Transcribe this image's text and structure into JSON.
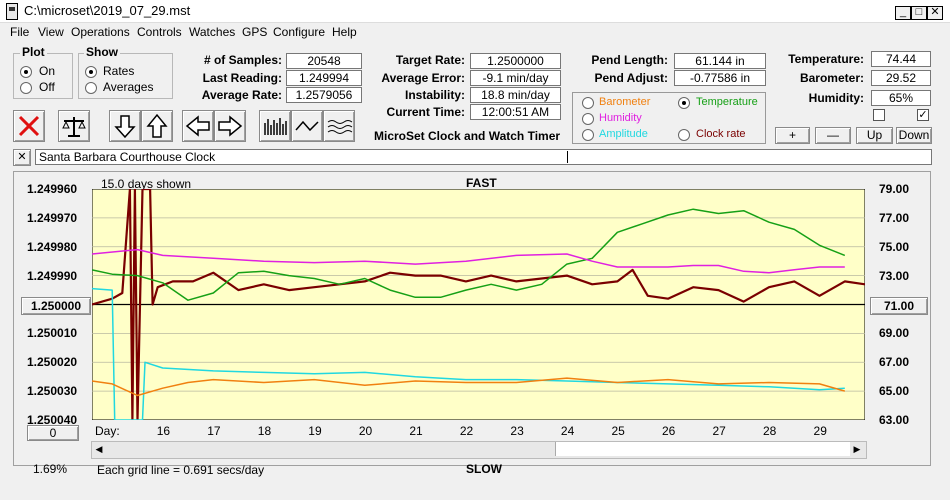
{
  "window": {
    "title": "C:\\microset\\2019_07_29.mst"
  },
  "menu": [
    "File",
    "View",
    "Operations",
    "Controls",
    "Watches",
    "GPS",
    "Configure",
    "Help"
  ],
  "plot_group": {
    "title": "Plot",
    "on": "On",
    "off": "Off",
    "selected": "On"
  },
  "show_group": {
    "title": "Show",
    "rates": "Rates",
    "averages": "Averages",
    "selected": "Rates"
  },
  "stats": {
    "samples_label": "# of Samples:",
    "samples": "20548",
    "last_label": "Last Reading:",
    "last": "1.249994",
    "avgrate_label": "Average Rate:",
    "avgrate": "1.2579056",
    "target_label": "Target Rate:",
    "target": "1.2500000",
    "avgerr_label": "Average Error:",
    "avgerr": "-9.1 min/day",
    "instab_label": "Instability:",
    "instab": "18.8 min/day",
    "time_label": "Current Time:",
    "time": "12:00:51 AM",
    "pendlen_label": "Pend Length:",
    "pendlen": "61.144 in",
    "pendadj_label": "Pend Adjust:",
    "pendadj": "-0.77586 in",
    "temp_label": "Temperature:",
    "temp": "74.44",
    "baro_label": "Barometer:",
    "baro": "29.52",
    "hum_label": "Humidity:",
    "hum": "65%"
  },
  "app_caption": "MicroSet Clock and Watch Timer",
  "legend": {
    "barometer": "Barometer",
    "temperature": "Temperature",
    "humidity": "Humidity",
    "amplitude": "Amplitude",
    "clockrate": "Clock rate",
    "selected": "Temperature"
  },
  "sensor_buttons": {
    "plus": "+",
    "minus": "—",
    "up": "Up",
    "down": "Down"
  },
  "clock_name": "Santa Barbara Courthouse Clock",
  "chart": {
    "days_shown": "15.0 days shown",
    "fast": "FAST",
    "slow": "SLOW",
    "day_label": "Day:",
    "grid_note": "Each grid line = 0.691 secs/day",
    "corner_pct": "1.69%",
    "center_button": "1.250000",
    "zero_button": "0",
    "right_button": "71.00"
  },
  "colors": {
    "rate": "#7a0000",
    "temperature": "#16a016",
    "humidity": "#e020e0",
    "amplitude": "#20d8e0",
    "barometer": "#f08010",
    "plotbg": "#ffffc8"
  },
  "chart_data": {
    "type": "line",
    "left_axis": {
      "ticks": [
        "1.249960",
        "1.249970",
        "1.249980",
        "1.249990",
        "1.250000",
        "1.250010",
        "1.250020",
        "1.250030",
        "1.250040"
      ],
      "range": [
        1.24996,
        1.25004
      ],
      "inverted": true
    },
    "right_axis": {
      "ticks": [
        "79.00",
        "77.00",
        "75.00",
        "73.00",
        "71.00",
        "69.00",
        "67.00",
        "65.00",
        "63.00"
      ],
      "range": [
        63,
        79
      ]
    },
    "x_ticks": [
      "16",
      "17",
      "18",
      "19",
      "20",
      "21",
      "22",
      "23",
      "24",
      "25",
      "26",
      "27",
      "28",
      "29"
    ],
    "x_range": [
      14.6,
      29.9
    ],
    "series": [
      {
        "name": "Clock rate",
        "color": "#7a0000",
        "axis": "left",
        "points": [
          [
            14.6,
            1.25
          ],
          [
            15.0,
            1.249998
          ],
          [
            15.2,
            1.249996
          ],
          [
            15.35,
            1.24996
          ],
          [
            15.4,
            1.25004
          ],
          [
            15.45,
            1.24996
          ],
          [
            15.5,
            1.25004
          ],
          [
            15.6,
            1.24996
          ],
          [
            15.75,
            1.24996
          ],
          [
            15.8,
            1.25
          ],
          [
            15.9,
            1.249994
          ],
          [
            16.2,
            1.249992
          ],
          [
            16.6,
            1.249992
          ],
          [
            17.0,
            1.249989
          ],
          [
            17.5,
            1.249995
          ],
          [
            18.0,
            1.249993
          ],
          [
            18.5,
            1.249995
          ],
          [
            19.0,
            1.249994
          ],
          [
            19.5,
            1.249993
          ],
          [
            20.0,
            1.249992
          ],
          [
            20.5,
            1.249989
          ],
          [
            21.0,
            1.24999
          ],
          [
            21.5,
            1.24999
          ],
          [
            22.0,
            1.249992
          ],
          [
            22.5,
            1.24999
          ],
          [
            23.0,
            1.249992
          ],
          [
            23.5,
            1.249991
          ],
          [
            24.0,
            1.24999
          ],
          [
            24.5,
            1.249993
          ],
          [
            25.0,
            1.249992
          ],
          [
            25.3,
            1.249988
          ],
          [
            25.6,
            1.249997
          ],
          [
            26.0,
            1.249998
          ],
          [
            26.5,
            1.249994
          ],
          [
            27.0,
            1.249995
          ],
          [
            27.5,
            1.249999
          ],
          [
            28.0,
            1.249994
          ],
          [
            28.5,
            1.249992
          ],
          [
            29.0,
            1.249997
          ],
          [
            29.5,
            1.249992
          ],
          [
            29.9,
            1.249993
          ]
        ]
      },
      {
        "name": "Temperature",
        "color": "#16a016",
        "axis": "right",
        "points": [
          [
            14.6,
            73.4
          ],
          [
            15.0,
            73.1
          ],
          [
            15.5,
            73.0
          ],
          [
            16.0,
            72.5
          ],
          [
            16.5,
            71.3
          ],
          [
            17.0,
            71.8
          ],
          [
            17.5,
            73.2
          ],
          [
            18.0,
            73.3
          ],
          [
            18.5,
            73.0
          ],
          [
            19.0,
            72.8
          ],
          [
            19.5,
            72.4
          ],
          [
            20.0,
            72.8
          ],
          [
            20.5,
            72.0
          ],
          [
            21.0,
            71.5
          ],
          [
            21.5,
            71.5
          ],
          [
            22.0,
            72.0
          ],
          [
            22.5,
            72.4
          ],
          [
            23.0,
            72.0
          ],
          [
            23.5,
            72.4
          ],
          [
            24.0,
            73.8
          ],
          [
            24.5,
            74.2
          ],
          [
            25.0,
            76.0
          ],
          [
            25.5,
            76.6
          ],
          [
            26.0,
            77.2
          ],
          [
            26.5,
            77.6
          ],
          [
            27.0,
            77.3
          ],
          [
            27.5,
            77.5
          ],
          [
            28.0,
            76.7
          ],
          [
            28.5,
            76.2
          ],
          [
            29.0,
            75.1
          ],
          [
            29.5,
            74.4
          ]
        ]
      },
      {
        "name": "Humidity",
        "color": "#e020e0",
        "axis": "right",
        "points": [
          [
            14.6,
            74.5
          ],
          [
            15.5,
            74.8
          ],
          [
            16.0,
            74.4
          ],
          [
            17.0,
            74.2
          ],
          [
            18.0,
            74.0
          ],
          [
            19.0,
            73.9
          ],
          [
            20.0,
            74.0
          ],
          [
            21.0,
            73.8
          ],
          [
            22.0,
            74.0
          ],
          [
            23.0,
            74.4
          ],
          [
            24.0,
            74.5
          ],
          [
            24.5,
            74.0
          ],
          [
            25.0,
            73.6
          ],
          [
            25.5,
            73.6
          ],
          [
            26.0,
            73.6
          ],
          [
            26.5,
            73.7
          ],
          [
            27.0,
            73.7
          ],
          [
            27.5,
            73.3
          ],
          [
            28.0,
            73.2
          ],
          [
            28.5,
            73.4
          ],
          [
            29.0,
            73.6
          ],
          [
            29.5,
            73.6
          ]
        ]
      },
      {
        "name": "Amplitude",
        "color": "#20d8e0",
        "axis": "right",
        "points": [
          [
            14.6,
            72.1
          ],
          [
            15.0,
            72.0
          ],
          [
            15.05,
            63.0
          ],
          [
            15.3,
            63.0
          ],
          [
            15.6,
            63.0
          ],
          [
            15.65,
            67.0
          ],
          [
            16.0,
            66.6
          ],
          [
            17.0,
            66.4
          ],
          [
            18.0,
            66.3
          ],
          [
            19.0,
            66.2
          ],
          [
            20.0,
            66.3
          ],
          [
            21.0,
            66.0
          ],
          [
            22.0,
            65.8
          ],
          [
            23.0,
            65.8
          ],
          [
            24.0,
            65.7
          ],
          [
            25.0,
            65.6
          ],
          [
            26.0,
            65.5
          ],
          [
            27.0,
            65.4
          ],
          [
            28.0,
            65.3
          ],
          [
            29.0,
            65.1
          ],
          [
            29.5,
            65.2
          ]
        ]
      },
      {
        "name": "Barometer",
        "color": "#f08010",
        "axis": "right",
        "points": [
          [
            14.6,
            65.7
          ],
          [
            15.0,
            65.5
          ],
          [
            15.5,
            64.7
          ],
          [
            16.0,
            65.2
          ],
          [
            16.5,
            65.6
          ],
          [
            17.0,
            65.8
          ],
          [
            18.0,
            65.6
          ],
          [
            19.0,
            65.8
          ],
          [
            20.0,
            65.4
          ],
          [
            21.0,
            65.7
          ],
          [
            22.0,
            65.6
          ],
          [
            23.0,
            65.6
          ],
          [
            24.0,
            65.9
          ],
          [
            25.0,
            65.6
          ],
          [
            26.0,
            65.8
          ],
          [
            27.0,
            65.5
          ],
          [
            28.0,
            65.6
          ],
          [
            29.0,
            65.5
          ],
          [
            29.5,
            65.0
          ]
        ]
      }
    ]
  }
}
